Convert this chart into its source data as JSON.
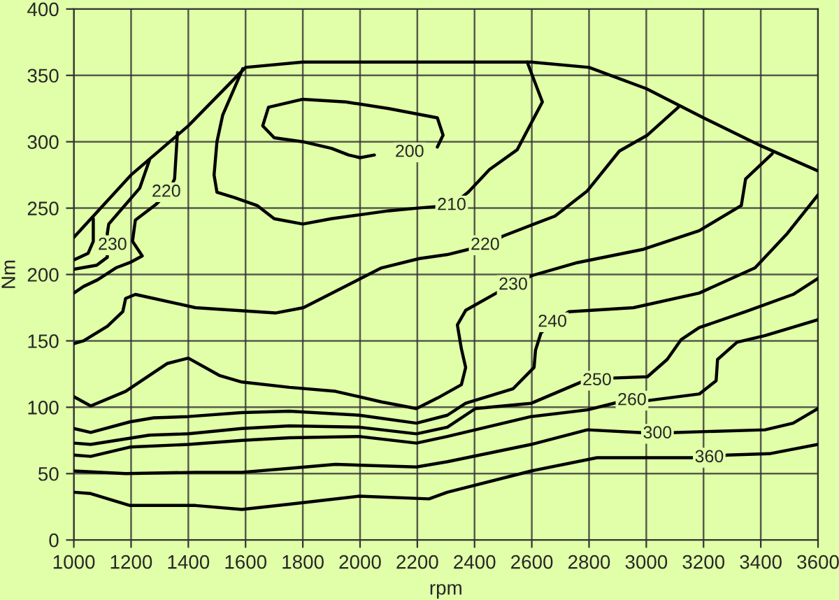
{
  "chart_data": {
    "type": "line",
    "xlabel": "rpm",
    "ylabel": "Nm",
    "xlim": [
      1000,
      3600
    ],
    "ylim": [
      0,
      400
    ],
    "xticks": [
      1000,
      1200,
      1400,
      1600,
      1800,
      2000,
      2200,
      2400,
      2600,
      2800,
      3000,
      3200,
      3400,
      3600
    ],
    "yticks": [
      0,
      50,
      100,
      150,
      200,
      250,
      300,
      350,
      400
    ],
    "grid": true,
    "marker": "none",
    "line_style": "solid",
    "series": [
      {
        "color": "#000000",
        "x": [
          1000,
          1200,
          1400,
          1600,
          1800,
          2600,
          2800,
          3000,
          3200,
          3400,
          3600
        ],
        "values": [
          228,
          275,
          312,
          356,
          360,
          360,
          356,
          340,
          318,
          297,
          278
        ]
      },
      {
        "color": "#000000",
        "x": [
          2050,
          2000,
          1960,
          1900,
          1800,
          1700,
          1660,
          1680,
          1800,
          1950,
          2100,
          2270,
          2290,
          2270
        ],
        "values": [
          290,
          288,
          290,
          295,
          300,
          303,
          312,
          326,
          332,
          330,
          325,
          318,
          305,
          296
        ]
      },
      {
        "color": "#000000",
        "x": [
          1590,
          1560,
          1520,
          1500,
          1490,
          1500,
          1560,
          1640,
          1700,
          1800,
          1900,
          2000,
          2100,
          2200,
          2320,
          2378,
          2452,
          2549,
          2637,
          2584
        ],
        "values": [
          355,
          340,
          320,
          300,
          275,
          262,
          258,
          252,
          242,
          238,
          242,
          245,
          248,
          250,
          252,
          262,
          279,
          294,
          330,
          360
        ]
      },
      {
        "color": "#000000",
        "x": [
          1000,
          1034,
          1117,
          1171,
          1181,
          1215,
          1425,
          1704,
          1802,
          2075,
          2207,
          2305,
          2437,
          2500,
          2681,
          2794,
          2906,
          3004,
          3112
        ],
        "values": [
          148,
          150,
          161,
          172,
          182,
          185,
          175,
          171,
          175,
          205,
          212,
          215,
          222,
          229,
          244,
          263,
          293,
          305,
          326
        ]
      },
      {
        "color": "#000000",
        "x": [
          1362,
          1352,
          1330,
          1288,
          1215,
          1205,
          1239,
          1196,
          1147,
          1083,
          1034,
          1000
        ],
        "values": [
          307,
          272,
          262,
          253,
          241,
          225,
          214,
          209,
          205,
          196,
          191,
          186
        ]
      },
      {
        "color": "#000000",
        "x": [
          1264,
          1230,
          1166,
          1122,
          1117,
          1117,
          1080,
          1000
        ],
        "values": [
          286,
          265,
          249,
          238,
          231,
          213,
          207,
          204
        ]
      },
      {
        "color": "#000000",
        "x": [
          1068,
          1068,
          1050,
          1000
        ],
        "values": [
          242,
          225,
          216,
          211
        ]
      },
      {
        "color": "#000000",
        "x": [
          1000,
          1059,
          1181,
          1327,
          1400,
          1508,
          1587,
          1753,
          1914,
          2075,
          2197,
          2271,
          2354,
          2369,
          2354,
          2340,
          2369,
          2476,
          2535,
          2598,
          2760,
          2990,
          3185,
          3332,
          3347,
          3440
        ],
        "values": [
          108,
          101,
          112,
          133,
          137,
          124,
          119,
          115,
          112,
          104,
          99,
          107,
          117,
          130,
          144,
          162,
          173,
          186,
          192,
          199,
          209,
          219,
          233,
          252,
          272,
          291
        ]
      },
      {
        "color": "#000000",
        "x": [
          1000,
          1059,
          1196,
          1279,
          1401,
          1587,
          1753,
          1997,
          2197,
          2305,
          2369,
          2535,
          2608,
          2613,
          2632,
          2672,
          2730,
          2955,
          3185,
          3380,
          3493,
          3600
        ],
        "values": [
          84,
          81,
          89,
          92,
          93,
          96,
          97,
          94,
          88,
          94,
          103,
          114,
          130,
          143,
          156,
          164,
          172,
          175,
          186,
          205,
          231,
          260
        ]
      },
      {
        "color": "#000000",
        "x": [
          1000,
          1059,
          1264,
          1401,
          1587,
          1753,
          1997,
          2197,
          2305,
          2403,
          2598,
          2784,
          2828,
          2882,
          3004,
          3073,
          3122,
          3185,
          3347,
          3513,
          3600
        ],
        "values": [
          73,
          72,
          79,
          80,
          84,
          86,
          85,
          80,
          85,
          99,
          103,
          120,
          120,
          122,
          123,
          136,
          151,
          160,
          172,
          185,
          197
        ]
      },
      {
        "color": "#000000",
        "x": [
          1000,
          1059,
          1196,
          1401,
          1587,
          1753,
          1997,
          2197,
          2305,
          2598,
          2794,
          2906,
          2950,
          3004,
          3185,
          3244,
          3249,
          3317,
          3415,
          3600
        ],
        "values": [
          64,
          63,
          70,
          72,
          75,
          77,
          78,
          73,
          78,
          93,
          98,
          104,
          105,
          105,
          110,
          120,
          136,
          149,
          154,
          166
        ]
      },
      {
        "color": "#000000",
        "x": [
          1000,
          1181,
          1425,
          1587,
          1753,
          1914,
          2197,
          2305,
          2598,
          2794,
          2975,
          3039,
          3102,
          3415,
          3513,
          3600
        ],
        "values": [
          52,
          50,
          51,
          51,
          54,
          57,
          55,
          59,
          72,
          83,
          81,
          80,
          81,
          83,
          88,
          99
        ]
      },
      {
        "color": "#000000",
        "x": [
          1000,
          1059,
          1196,
          1425,
          1587,
          1753,
          1997,
          2241,
          2305,
          2598,
          2828,
          3161,
          3220,
          3283,
          3430,
          3600
        ],
        "values": [
          36,
          35,
          26,
          26,
          23,
          27,
          33,
          31,
          36,
          52,
          62,
          62,
          62,
          64,
          65,
          72
        ]
      }
    ],
    "annotations": [
      {
        "text": "200",
        "x": 2173,
        "y": 292
      },
      {
        "text": "210",
        "x": 2320,
        "y": 252
      },
      {
        "text": "220",
        "x": 2437,
        "y": 222
      },
      {
        "text": "220",
        "x": 1323,
        "y": 262
      },
      {
        "text": "230",
        "x": 1135,
        "y": 222
      },
      {
        "text": "230",
        "x": 2535,
        "y": 192
      },
      {
        "text": "240",
        "x": 2672,
        "y": 164
      },
      {
        "text": "250",
        "x": 2828,
        "y": 120
      },
      {
        "text": "260",
        "x": 2950,
        "y": 105
      },
      {
        "text": "300",
        "x": 3039,
        "y": 80
      },
      {
        "text": "360",
        "x": 3220,
        "y": 62
      }
    ]
  }
}
